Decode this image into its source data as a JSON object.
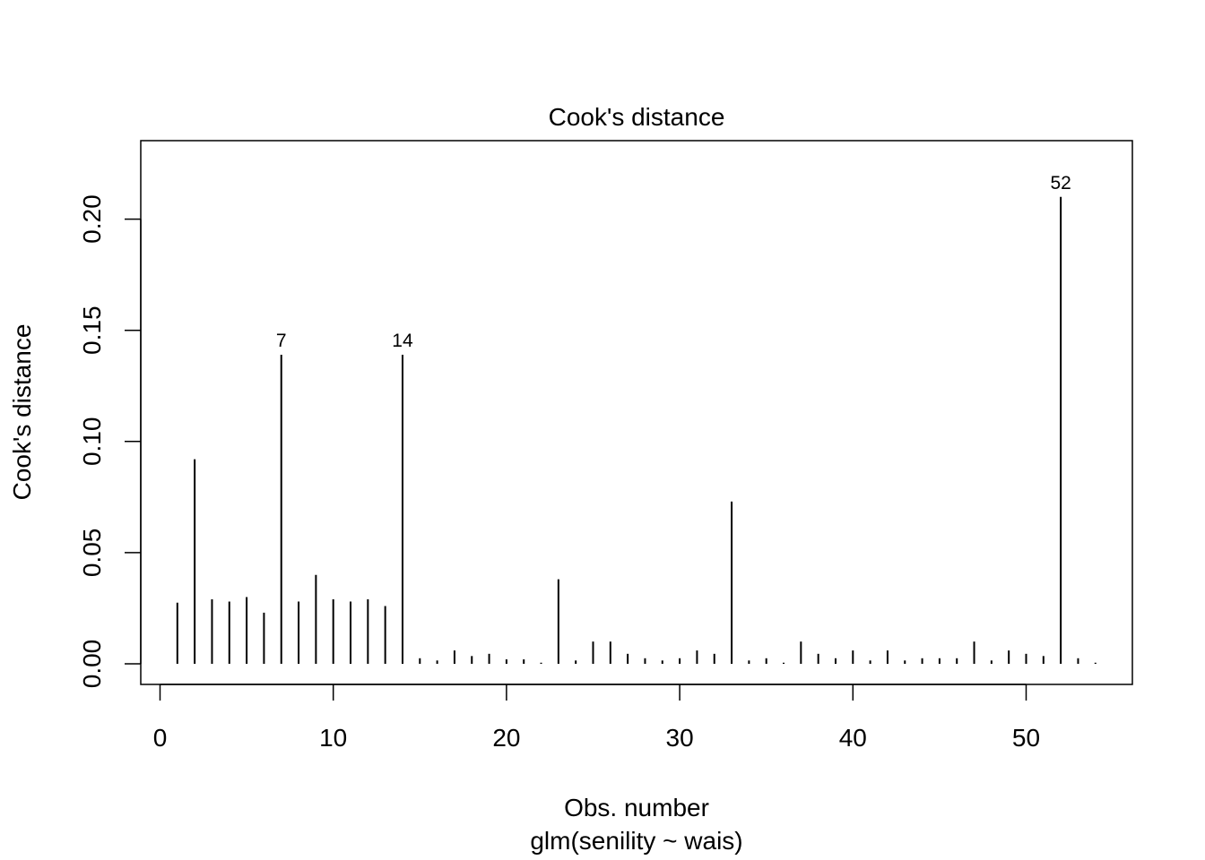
{
  "chart_data": {
    "type": "bar",
    "style": "vertical-lines",
    "title": "Cook's distance",
    "xlabel": "Obs. number",
    "subtitle": "glm(senility ~ wais)",
    "ylabel": "Cook's distance",
    "xlim": [
      0,
      56
    ],
    "ylim": [
      0,
      0.23
    ],
    "xticks": [
      0,
      10,
      20,
      30,
      40,
      50
    ],
    "yticks": [
      0.0,
      0.05,
      0.1,
      0.15,
      0.2
    ],
    "xtick_labels": [
      "0",
      "10",
      "20",
      "30",
      "40",
      "50"
    ],
    "ytick_labels": [
      "0.00",
      "0.05",
      "0.10",
      "0.15",
      "0.20"
    ],
    "x": [
      1,
      2,
      3,
      4,
      5,
      6,
      7,
      8,
      9,
      10,
      11,
      12,
      13,
      14,
      15,
      16,
      17,
      18,
      19,
      20,
      21,
      22,
      23,
      24,
      25,
      26,
      27,
      28,
      29,
      30,
      31,
      32,
      33,
      34,
      35,
      36,
      37,
      38,
      39,
      40,
      41,
      42,
      43,
      44,
      45,
      46,
      47,
      48,
      49,
      50,
      51,
      52,
      53,
      54
    ],
    "values": [
      0.0275,
      0.092,
      0.029,
      0.028,
      0.03,
      0.023,
      0.139,
      0.028,
      0.04,
      0.029,
      0.028,
      0.029,
      0.026,
      0.139,
      0.0025,
      0.0015,
      0.006,
      0.0035,
      0.0045,
      0.002,
      0.002,
      0.0005,
      0.038,
      0.0015,
      0.01,
      0.01,
      0.0045,
      0.0025,
      0.0015,
      0.0025,
      0.006,
      0.0045,
      0.073,
      0.0015,
      0.0025,
      0.0005,
      0.01,
      0.0045,
      0.0025,
      0.006,
      0.0015,
      0.006,
      0.0015,
      0.0025,
      0.0025,
      0.0025,
      0.01,
      0.0015,
      0.006,
      0.0045,
      0.0035,
      0.21,
      0.0025,
      0.0005
    ],
    "annotations": [
      {
        "x": 7,
        "label": "7"
      },
      {
        "x": 14,
        "label": "14"
      },
      {
        "x": 52,
        "label": "52"
      }
    ],
    "line_color": "#000000",
    "grid": false
  }
}
